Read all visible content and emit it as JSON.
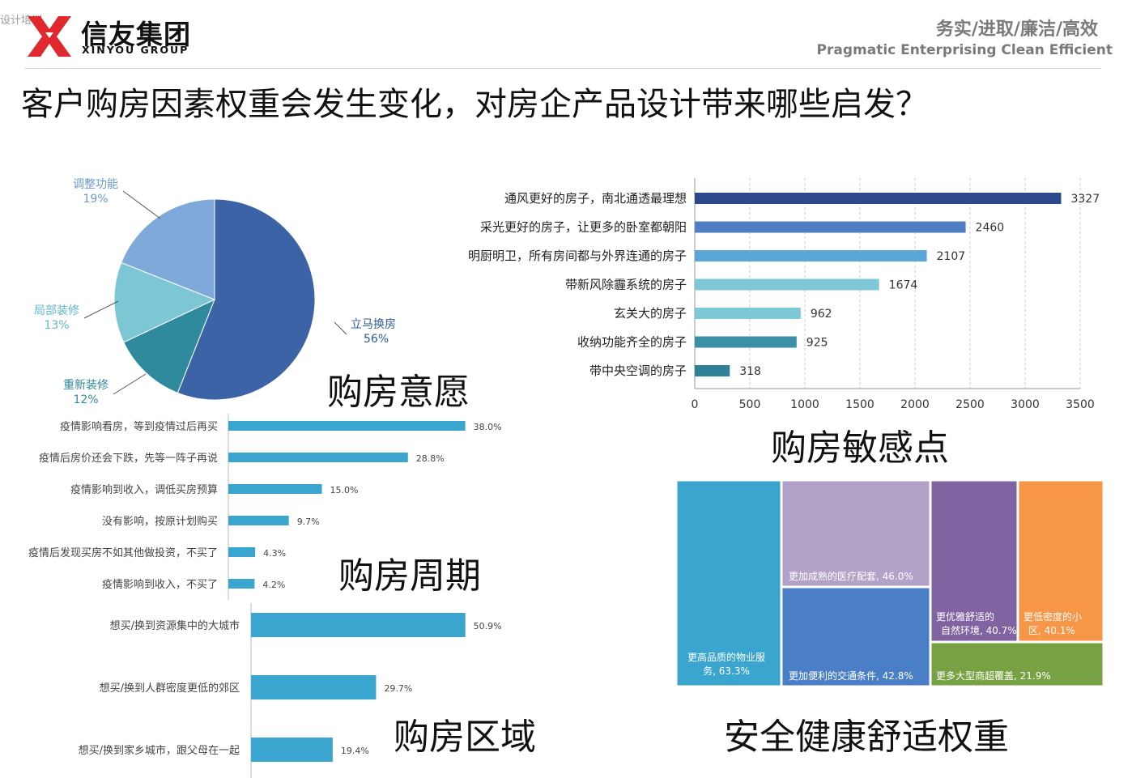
{
  "watermark": "设计培训",
  "header": {
    "brand_cn": "信友集团",
    "brand_en": "XINYOU GROUP",
    "motto_cn": "务实/进取/廉洁/高效",
    "motto_en": "Pragmatic Enterprising Clean Efficient"
  },
  "main_title": "客户购房因素权重会发生变化，对房企产品设计带来哪些启发？",
  "section_titles": {
    "intent": "购房意愿",
    "sensitivity": "购房敏感点",
    "cycle": "购房周期",
    "region": "购房区域",
    "safety": "安全健康舒适权重"
  },
  "colors": {
    "pie": [
      "#3b63a5",
      "#2f8a9e",
      "#7cc6d6",
      "#7ea9d8"
    ],
    "sensitivity": [
      "#2c4a8a",
      "#4f7fc2",
      "#5aa6d8",
      "#7dc7d7",
      "#7ec9d6",
      "#3b8fa6",
      "#2f8198"
    ],
    "bar_blue": "#3aa6cf",
    "treemap": [
      "#3aa6cf",
      "#b3a2c8",
      "#4a7ec7",
      "#8064a2",
      "#f79646",
      "#77a142"
    ]
  },
  "chart_data": [
    {
      "type": "pie",
      "slices": [
        {
          "label": "立马换房",
          "value": 56,
          "pct_text": "56%"
        },
        {
          "label": "重新装修",
          "value": 12,
          "pct_text": "12%"
        },
        {
          "label": "局部装修",
          "value": 13,
          "pct_text": "13%"
        },
        {
          "label": "调整功能",
          "value": 19,
          "pct_text": "19%"
        }
      ]
    },
    {
      "type": "bar",
      "orientation": "horizontal",
      "categories": [
        "通风更好的房子，南北通透最理想",
        "采光更好的房子，让更多的卧室都朝阳",
        "明厨明卫，所有房间都与外界连通的房子",
        "带新风除霾系统的房子",
        "玄关大的房子",
        "收纳功能齐全的房子",
        "带中央空调的房子"
      ],
      "values": [
        3327,
        2460,
        2107,
        1674,
        962,
        925,
        318
      ],
      "xlim": [
        0,
        3500
      ],
      "xticks": [
        "0",
        "500",
        "1000",
        "1500",
        "2000",
        "2500",
        "3000",
        "3500"
      ],
      "grid": true
    },
    {
      "type": "bar",
      "orientation": "horizontal",
      "categories": [
        "疫情影响看房，等到疫情过后再买",
        "疫情后房价还会下跌，先等一阵子再说",
        "疫情影响到收入，调低买房预算",
        "没有影响，按原计划购买",
        "疫情后发现买房不如其他做投资，不买了",
        "疫情影响到收入，不买了"
      ],
      "values": [
        38.0,
        28.8,
        15.0,
        9.7,
        4.3,
        4.2
      ],
      "value_labels": [
        "38.0%",
        "28.8%",
        "15.0%",
        "9.7%",
        "4.3%",
        "4.2%"
      ]
    },
    {
      "type": "bar",
      "orientation": "horizontal",
      "categories": [
        "想买/换到资源集中的大城市",
        "想买/换到人群密度更低的郊区",
        "想买/换到家乡城市，跟父母在一起"
      ],
      "values": [
        50.9,
        29.7,
        19.4
      ],
      "value_labels": [
        "50.9%",
        "29.7%",
        "19.4%"
      ]
    },
    {
      "type": "treemap",
      "items": [
        {
          "label": "更高品质的物业服务, 63.3%",
          "value": 63.3
        },
        {
          "label": "更加成熟的医疗配套, 46.0%",
          "value": 46.0
        },
        {
          "label": "更加便利的交通条件, 42.8%",
          "value": 42.8
        },
        {
          "label": "更优雅舒适的自然环境, 40.7%",
          "value": 40.7
        },
        {
          "label": "更低密度的小区, 40.1%",
          "value": 40.1
        },
        {
          "label": "更多大型商超覆盖, 21.9%",
          "value": 21.9
        }
      ]
    }
  ]
}
